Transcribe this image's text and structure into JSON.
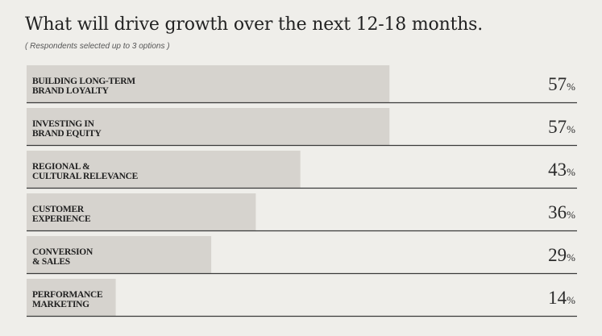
{
  "chart_data": {
    "type": "bar",
    "orientation": "horizontal",
    "title": "What will drive growth over the next 12-18 months.",
    "subtitle": "( Respondents selected up to 3 options )",
    "unit": "%",
    "xlim": [
      0,
      100
    ],
    "categories": [
      [
        "BUILDING LONG-TERM",
        "BRAND LOYALTY"
      ],
      [
        "INVESTING IN",
        "BRAND EQUITY"
      ],
      [
        "REGIONAL &",
        "CULTURAL RELEVANCE"
      ],
      [
        "CUSTOMER",
        "EXPERIENCE"
      ],
      [
        "CONVERSION",
        "& SALES"
      ],
      [
        "PERFORMANCE",
        "MARKETING"
      ]
    ],
    "values": [
      57,
      57,
      43,
      36,
      29,
      14
    ],
    "grid": false,
    "legend": "none",
    "colors": {
      "bar": "#d6d3ce",
      "baseline": "#3a3a3a",
      "background": "#efeeea"
    }
  }
}
